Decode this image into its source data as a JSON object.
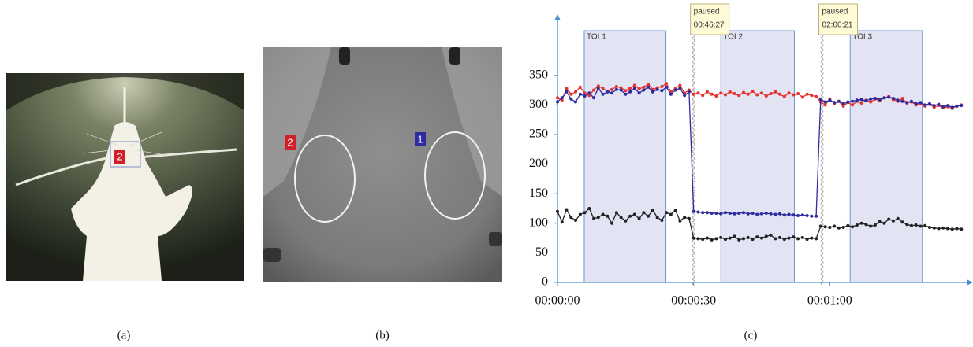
{
  "panel_labels": [
    "(a)",
    "(b)",
    "(c)"
  ],
  "roi_markers": {
    "a": [
      "2"
    ],
    "b": [
      "2",
      "1"
    ]
  },
  "chart_data": {
    "type": "line",
    "x": [
      0,
      1,
      2,
      3,
      4,
      5,
      6,
      7,
      8,
      9,
      10,
      11,
      12,
      13,
      14,
      15,
      16,
      17,
      18,
      19,
      20,
      21,
      22,
      23,
      24,
      25,
      26,
      27,
      28,
      29,
      30,
      31,
      32,
      33,
      34,
      35,
      36,
      37,
      38,
      39,
      40,
      41,
      42,
      43,
      44,
      45,
      46,
      47,
      48,
      49,
      50,
      51,
      52,
      53,
      54,
      55,
      56,
      57,
      58,
      59,
      60,
      61,
      62,
      63,
      64,
      65,
      66,
      67,
      68,
      69,
      70,
      71,
      72,
      73,
      74,
      75,
      76,
      77,
      78,
      79,
      80,
      81,
      82,
      83,
      84,
      85,
      86,
      87,
      88,
      89
    ],
    "series": [
      {
        "color": "#e8302c",
        "values": [
          312,
          308,
          328,
          318,
          322,
          330,
          320,
          316,
          325,
          332,
          328,
          322,
          326,
          331,
          329,
          324,
          328,
          333,
          327,
          330,
          335,
          326,
          329,
          331,
          336,
          322,
          328,
          333,
          320,
          325,
          318,
          320,
          316,
          322,
          318,
          315,
          320,
          317,
          322,
          319,
          316,
          321,
          318,
          323,
          317,
          320,
          315,
          319,
          322,
          318,
          314,
          320,
          317,
          319,
          313,
          318,
          316,
          314,
          305,
          300,
          310,
          302,
          306,
          298,
          304,
          300,
          306,
          303,
          308,
          305,
          310,
          307,
          312,
          314,
          309,
          306,
          311,
          303,
          305,
          300,
          302,
          298,
          301,
          296,
          299,
          295,
          297,
          294,
          298,
          300
        ]
      },
      {
        "color": "#2e2b9e",
        "values": [
          305,
          312,
          322,
          310,
          305,
          318,
          315,
          320,
          312,
          328,
          318,
          322,
          320,
          326,
          325,
          318,
          322,
          328,
          320,
          325,
          330,
          322,
          326,
          324,
          330,
          318,
          325,
          328,
          316,
          322,
          120,
          119,
          118,
          118,
          117,
          117,
          116,
          118,
          117,
          116,
          117,
          118,
          116,
          117,
          115,
          116,
          117,
          116,
          115,
          116,
          114,
          115,
          114,
          113,
          114,
          113,
          112,
          112,
          310,
          305,
          308,
          304,
          306,
          302,
          305,
          306,
          308,
          309,
          307,
          310,
          311,
          309,
          312,
          313,
          311,
          308,
          306,
          304,
          306,
          302,
          304,
          300,
          302,
          299,
          301,
          297,
          299,
          296,
          298,
          299
        ]
      },
      {
        "color": "#222222",
        "values": [
          120,
          102,
          123,
          110,
          105,
          115,
          118,
          125,
          108,
          110,
          115,
          112,
          100,
          118,
          110,
          104,
          112,
          115,
          108,
          118,
          112,
          122,
          110,
          105,
          118,
          115,
          122,
          104,
          110,
          108,
          75,
          74,
          73,
          75,
          72,
          74,
          76,
          73,
          75,
          78,
          72,
          74,
          76,
          73,
          77,
          75,
          78,
          80,
          74,
          76,
          73,
          75,
          77,
          74,
          76,
          73,
          75,
          74,
          95,
          94,
          93,
          95,
          92,
          93,
          96,
          94,
          97,
          100,
          98,
          95,
          97,
          103,
          100,
          107,
          104,
          108,
          102,
          98,
          96,
          97,
          95,
          96,
          93,
          92,
          91,
          92,
          91,
          90,
          91,
          90
        ]
      }
    ],
    "xlim": [
      0,
      90
    ],
    "xticks": [
      {
        "value": 0,
        "label": "00:00:00"
      },
      {
        "value": 30,
        "label": "00:00:30"
      },
      {
        "value": 60,
        "label": "00:01:00"
      }
    ],
    "ylim": [
      0,
      440
    ],
    "yticks": [
      0,
      50,
      100,
      150,
      200,
      250,
      300,
      350
    ],
    "regions": [
      {
        "label": "TOI 1",
        "start": 5.9,
        "end": 23.9
      },
      {
        "label": "TOI 2",
        "start": 36,
        "end": 52.2
      },
      {
        "label": "TOI 3",
        "start": 64.5,
        "end": 80.4
      }
    ],
    "annotations": [
      {
        "x": 30,
        "text": "paused",
        "time": "00:46:27"
      },
      {
        "x": 58.3,
        "text": "paused",
        "time": "02:00:21"
      }
    ]
  }
}
